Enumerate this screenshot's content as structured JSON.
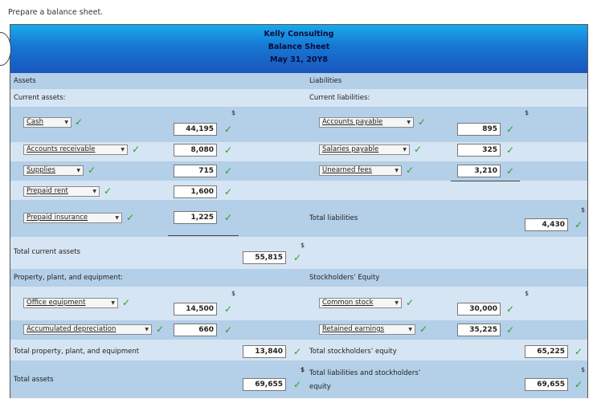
{
  "prompt": "Prepare a balance sheet.",
  "header": {
    "company": "Kelly Consulting",
    "title": "Balance Sheet",
    "date": "May 31, 20Y8"
  },
  "assets": {
    "heading": "Assets",
    "current_heading": "Current assets:",
    "cash_label": "Cash",
    "cash_value": "44,195",
    "ar_label": "Accounts receivable",
    "ar_value": "8,080",
    "supplies_label": "Supplies",
    "supplies_value": "715",
    "rent_label": "Prepaid rent",
    "rent_value": "1,600",
    "insurance_label": "Prepaid insurance",
    "insurance_value": "1,225",
    "total_current_label": "Total current assets",
    "total_current_value": "55,815",
    "ppe_heading": "Property, plant, and equipment:",
    "office_label": "Office equipment",
    "office_value": "14,500",
    "accdep_label": "Accumulated depreciation",
    "accdep_value": "660",
    "total_ppe_label": "Total property, plant, and equipment",
    "total_ppe_value": "13,840",
    "total_assets_label": "Total assets",
    "total_assets_value": "69,655"
  },
  "liabilities": {
    "heading": "Liabilities",
    "current_heading": "Current liabilities:",
    "ap_label": "Accounts payable",
    "ap_value": "895",
    "salaries_label": "Salaries payable",
    "salaries_value": "325",
    "unearned_label": "Unearned fees",
    "unearned_value": "3,210",
    "total_label": "Total liabilities",
    "total_value": "4,430"
  },
  "equity": {
    "heading": "Stockholders’ Equity",
    "common_label": "Common stock",
    "common_value": "30,000",
    "retained_label": "Retained earnings",
    "retained_value": "35,225",
    "total_label": "Total stockholders’ equity",
    "total_value": "65,225",
    "total_le_label": "Total liabilities and stockholders’",
    "total_le_label2": "equity",
    "total_le_value": "69,655"
  },
  "symbols": {
    "dollar": "$",
    "check": "✓",
    "arrow": "▼"
  }
}
